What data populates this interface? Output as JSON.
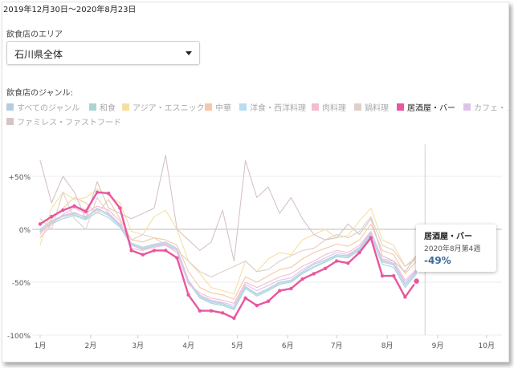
{
  "header": {
    "date_range": "2019年12月30日〜2020年8月23日"
  },
  "area": {
    "label": "飲食店のエリア",
    "selected": "石川県全体"
  },
  "genre": {
    "label": "飲食店のジャンル:"
  },
  "legend": [
    {
      "label": "すべてのジャンル",
      "color": "#b6cde0",
      "active": false
    },
    {
      "label": "和食",
      "color": "#a9d6cf",
      "active": false
    },
    {
      "label": "アジア・エスニック",
      "color": "#f6dfa2",
      "active": false
    },
    {
      "label": "中華",
      "color": "#f6c8a8",
      "active": false
    },
    {
      "label": "洋食・西洋料理",
      "color": "#b8dcf2",
      "active": false
    },
    {
      "label": "肉料理",
      "color": "#f3bdd0",
      "active": false
    },
    {
      "label": "鍋料理",
      "color": "#ddd0c8",
      "active": false
    },
    {
      "label": "居酒屋・バー",
      "color": "#e8579f",
      "active": true
    },
    {
      "label": "カフェ・ス",
      "color": "#dfc2ec",
      "active": false
    },
    {
      "label": "ファミレス・ファストフード",
      "color": "#d6c4c4",
      "active": false
    }
  ],
  "tooltip": {
    "series": "居酒屋・バー",
    "week": "2020年8月第4週",
    "value": "-49%"
  },
  "chart_data": {
    "type": "line",
    "ylim": [
      -100,
      80
    ],
    "yticks": [
      50,
      0,
      -50,
      -100
    ],
    "ytick_labels": [
      "+50%",
      "0%",
      "-50%",
      "-100%"
    ],
    "xlabels": [
      "1月",
      "2月",
      "3月",
      "4月",
      "5月",
      "6月",
      "7月",
      "8月",
      "9月",
      "10月"
    ],
    "xlabel_weeks": [
      0,
      4.43,
      8.57,
      13,
      17.29,
      21.71,
      26,
      30.43,
      34.86,
      39.14
    ],
    "highlight_week": 34,
    "series": [
      {
        "name": "居酒屋・バー",
        "color": "#e8579f",
        "highlight": true,
        "values": [
          5,
          12,
          18,
          22,
          17,
          35,
          34,
          20,
          -20,
          -24,
          -20,
          -20,
          -27,
          -62,
          -77,
          -77,
          -79,
          -84,
          -65,
          -72,
          -68,
          -58,
          -56,
          -47,
          -42,
          -37,
          -30,
          -32,
          -22,
          -8,
          -44,
          -44,
          -64,
          -49
        ]
      },
      {
        "name": "すべてのジャンル",
        "color": "#b6cde0",
        "values": [
          0,
          8,
          13,
          16,
          11,
          20,
          14,
          4,
          -13,
          -17,
          -14,
          -12,
          -18,
          -48,
          -63,
          -68,
          -70,
          -74,
          -54,
          -61,
          -56,
          -50,
          -48,
          -40,
          -33,
          -29,
          -24,
          -25,
          -18,
          -4,
          -30,
          -33,
          -52,
          -40
        ]
      },
      {
        "name": "和食",
        "color": "#a9d6cf",
        "values": [
          -2,
          5,
          10,
          13,
          9,
          16,
          11,
          2,
          -15,
          -19,
          -16,
          -14,
          -20,
          -50,
          -65,
          -70,
          -72,
          -76,
          -56,
          -63,
          -58,
          -52,
          -50,
          -42,
          -36,
          -31,
          -26,
          -27,
          -20,
          -6,
          -33,
          -36,
          -55,
          -42
        ]
      },
      {
        "name": "洋食・西洋料理",
        "color": "#b8dcf2",
        "values": [
          -1,
          6,
          12,
          14,
          10,
          18,
          13,
          3,
          -14,
          -18,
          -15,
          -13,
          -19,
          -49,
          -64,
          -69,
          -71,
          -75,
          -55,
          -62,
          -57,
          -51,
          -49,
          -41,
          -35,
          -30,
          -25,
          -26,
          -19,
          -5,
          -31,
          -34,
          -53,
          -41
        ]
      },
      {
        "name": "中華",
        "color": "#f6c8a8",
        "values": [
          -5,
          10,
          20,
          30,
          25,
          15,
          28,
          10,
          -10,
          -12,
          -8,
          -10,
          -15,
          -40,
          -55,
          -60,
          -62,
          -66,
          -45,
          -50,
          -44,
          -38,
          -36,
          -28,
          -22,
          -18,
          -14,
          -16,
          -10,
          5,
          -20,
          -24,
          -42,
          -30
        ]
      },
      {
        "name": "アジア・エスニック",
        "color": "#f6dfa2",
        "values": [
          -15,
          20,
          35,
          28,
          30,
          38,
          32,
          25,
          -2,
          -5,
          12,
          18,
          0,
          -30,
          -42,
          -55,
          -58,
          -61,
          -30,
          -40,
          -28,
          -22,
          -24,
          -10,
          -5,
          0,
          -8,
          -6,
          8,
          20,
          -10,
          -15,
          -35,
          -25
        ]
      },
      {
        "name": "肉料理",
        "color": "#f3bdd0",
        "values": [
          -8,
          5,
          14,
          20,
          15,
          22,
          18,
          8,
          -18,
          -20,
          -17,
          -15,
          -22,
          -52,
          -60,
          -65,
          -67,
          -70,
          -50,
          -55,
          -50,
          -45,
          -42,
          -35,
          -30,
          -24,
          -20,
          -22,
          -15,
          -2,
          -28,
          -30,
          -48,
          -38
        ]
      },
      {
        "name": "鍋料理",
        "color": "#ddd0c8",
        "values": [
          10,
          0,
          35,
          10,
          0,
          30,
          15,
          5,
          -10,
          -5,
          -8,
          -15,
          -20,
          -30,
          -40,
          -45,
          -40,
          -35,
          -30,
          -40,
          -38,
          -30,
          -25,
          -20,
          -18,
          -10,
          -5,
          -8,
          -2,
          12,
          -15,
          -20,
          -35,
          -28
        ]
      },
      {
        "name": "カフェ・ス",
        "color": "#dfc2ec",
        "values": [
          -3,
          7,
          12,
          15,
          12,
          19,
          15,
          5,
          -15,
          -18,
          -15,
          -14,
          -20,
          -50,
          -62,
          -67,
          -69,
          -72,
          -52,
          -58,
          -53,
          -48,
          -46,
          -38,
          -32,
          -27,
          -22,
          -24,
          -17,
          -3,
          -29,
          -32,
          -50,
          -39
        ]
      },
      {
        "name": "ファミレス・ファストフード",
        "color": "#d6c4c4",
        "values": [
          65,
          25,
          50,
          35,
          10,
          45,
          20,
          15,
          10,
          15,
          20,
          70,
          0,
          -10,
          -20,
          -12,
          18,
          -30,
          65,
          30,
          40,
          15,
          30,
          10,
          -5,
          -10,
          -8,
          5,
          -5,
          10,
          -25,
          -30,
          -40,
          -25
        ]
      }
    ]
  }
}
